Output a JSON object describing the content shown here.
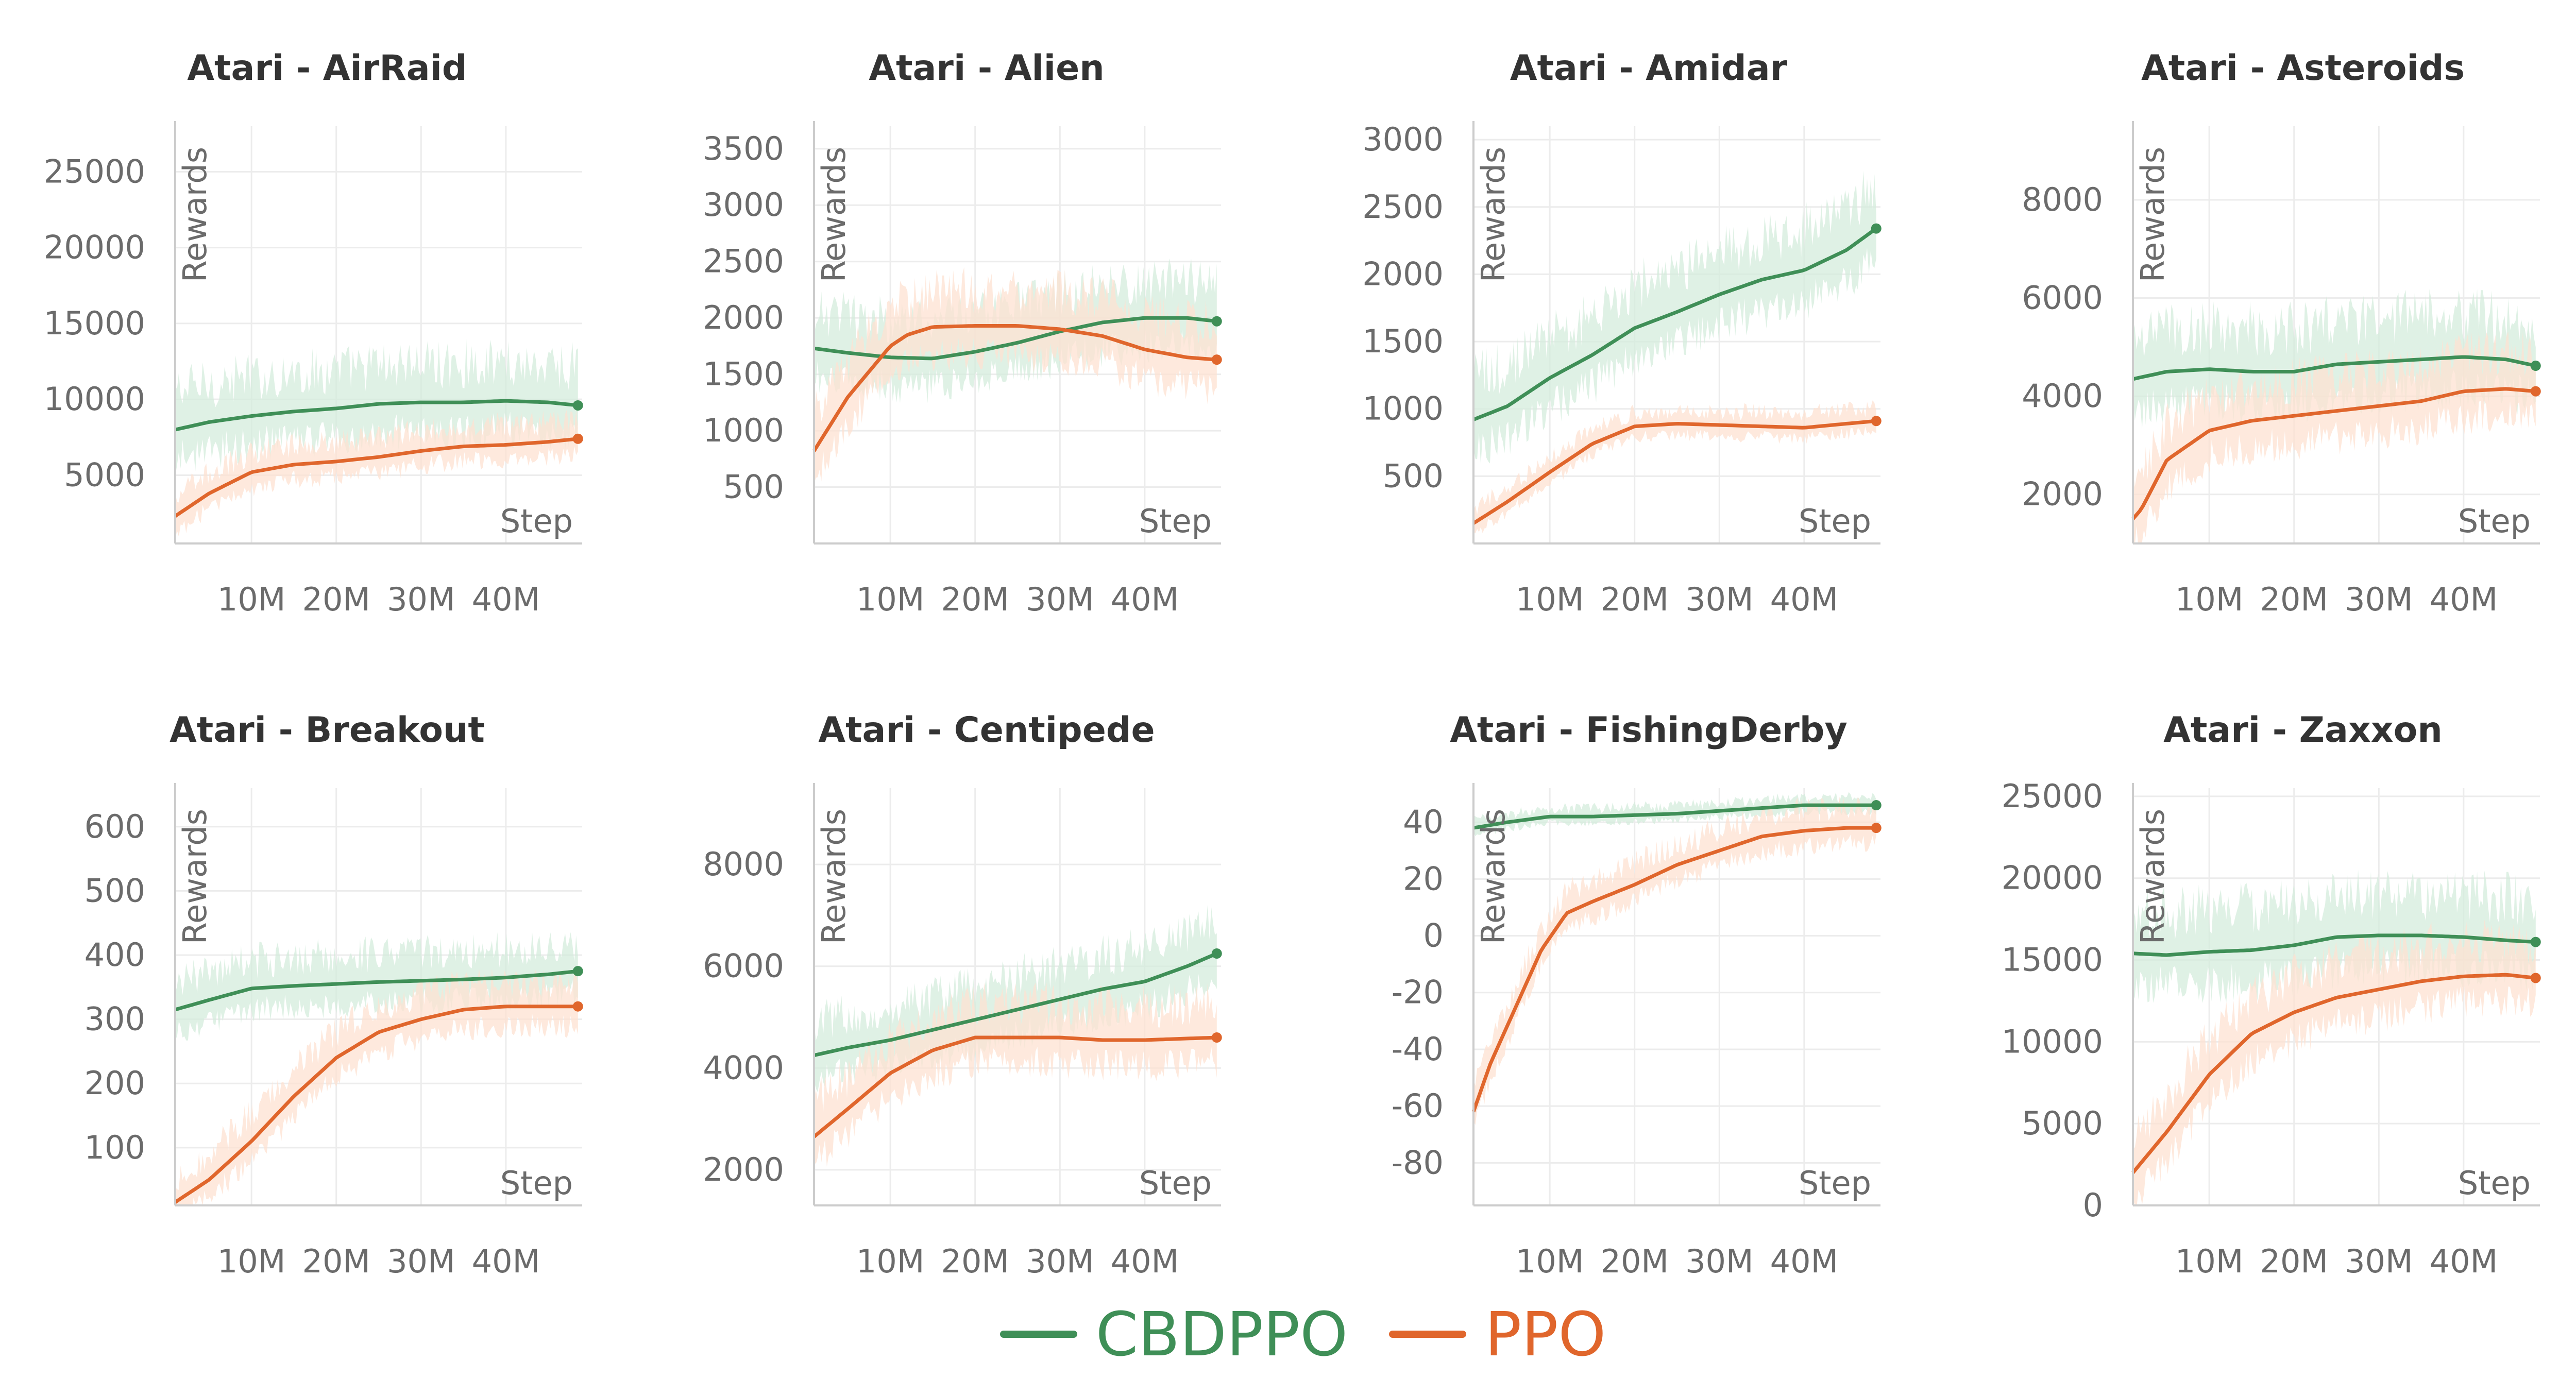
{
  "legend": {
    "series_a": "CBDPPO",
    "series_b": "PPO"
  },
  "colors": {
    "CBDPPO": "#3f8f57",
    "PPO": "#e0662c",
    "CBDPPO_band": "#d4ecdc",
    "PPO_band": "#fde2d2"
  },
  "chart_data": [
    {
      "type": "line",
      "title": "Atari - AirRaid",
      "xlabel": "Step",
      "ylabel": "Rewards",
      "xlim": [
        1,
        49
      ],
      "ylim": [
        500,
        28000
      ],
      "xticks": [
        10,
        20,
        30,
        40
      ],
      "xtick_labels": [
        "10M",
        "20M",
        "30M",
        "40M"
      ],
      "yticks": [
        5000,
        10000,
        15000,
        20000,
        25000
      ],
      "ytick_labels": [
        "5000",
        "10000",
        "15000",
        "20000",
        "25000"
      ],
      "grid": true,
      "series": [
        {
          "name": "CBDPPO",
          "x": [
            1,
            5,
            10,
            15,
            20,
            25,
            30,
            35,
            40,
            45,
            48.5
          ],
          "y": [
            8000,
            8500,
            8900,
            9200,
            9400,
            9700,
            9800,
            9800,
            9900,
            9800,
            9600
          ],
          "band_spread": 3500
        },
        {
          "name": "PPO",
          "x": [
            1,
            5,
            10,
            15,
            20,
            25,
            30,
            35,
            40,
            45,
            48.5
          ],
          "y": [
            2300,
            3800,
            5200,
            5700,
            5900,
            6200,
            6600,
            6900,
            7000,
            7200,
            7400
          ],
          "band_spread": 1800
        }
      ]
    },
    {
      "type": "line",
      "title": "Atari - Alien",
      "xlabel": "Step",
      "ylabel": "Rewards",
      "xlim": [
        1,
        49
      ],
      "ylim": [
        0,
        3700
      ],
      "xticks": [
        10,
        20,
        30,
        40
      ],
      "xtick_labels": [
        "10M",
        "20M",
        "30M",
        "40M"
      ],
      "yticks": [
        500,
        1000,
        1500,
        2000,
        2500,
        3000,
        3500
      ],
      "ytick_labels": [
        "500",
        "1000",
        "1500",
        "2000",
        "2500",
        "3000",
        "3500"
      ],
      "grid": true,
      "series": [
        {
          "name": "CBDPPO",
          "x": [
            1,
            5,
            10,
            15,
            20,
            25,
            30,
            35,
            40,
            45,
            48.5
          ],
          "y": [
            1730,
            1690,
            1650,
            1640,
            1700,
            1780,
            1880,
            1960,
            2000,
            2000,
            1970
          ],
          "band_spread": 450
        },
        {
          "name": "PPO",
          "x": [
            1,
            5,
            10,
            12,
            15,
            20,
            25,
            30,
            35,
            40,
            45,
            48.5
          ],
          "y": [
            820,
            1300,
            1750,
            1850,
            1920,
            1930,
            1930,
            1900,
            1840,
            1720,
            1650,
            1630
          ],
          "band_spread": 450
        }
      ]
    },
    {
      "type": "line",
      "title": "Atari - Amidar",
      "xlabel": "Step",
      "ylabel": "Rewards",
      "xlim": [
        1,
        49
      ],
      "ylim": [
        0,
        3100
      ],
      "xticks": [
        10,
        20,
        30,
        40
      ],
      "xtick_labels": [
        "10M",
        "20M",
        "30M",
        "40M"
      ],
      "yticks": [
        500,
        1000,
        1500,
        2000,
        2500,
        3000
      ],
      "ytick_labels": [
        "500",
        "1000",
        "1500",
        "2000",
        "2500",
        "3000"
      ],
      "grid": true,
      "series": [
        {
          "name": "CBDPPO",
          "x": [
            1,
            5,
            10,
            15,
            20,
            25,
            30,
            35,
            40,
            45,
            48.5
          ],
          "y": [
            920,
            1020,
            1230,
            1400,
            1600,
            1720,
            1850,
            1960,
            2030,
            2180,
            2340
          ],
          "band_spread": 420
        },
        {
          "name": "PPO",
          "x": [
            1,
            5,
            10,
            15,
            20,
            25,
            30,
            35,
            40,
            45,
            48.5
          ],
          "y": [
            150,
            310,
            530,
            740,
            870,
            890,
            880,
            870,
            860,
            890,
            910
          ],
          "band_spread": 140
        }
      ]
    },
    {
      "type": "line",
      "title": "Atari - Asteroids",
      "xlabel": "Step",
      "ylabel": "Rewards",
      "xlim": [
        1,
        49
      ],
      "ylim": [
        1000,
        9500
      ],
      "xticks": [
        10,
        20,
        30,
        40
      ],
      "xtick_labels": [
        "10M",
        "20M",
        "30M",
        "40M"
      ],
      "yticks": [
        2000,
        4000,
        6000,
        8000
      ],
      "ytick_labels": [
        "2000",
        "4000",
        "6000",
        "8000"
      ],
      "grid": true,
      "series": [
        {
          "name": "CBDPPO",
          "x": [
            1,
            5,
            10,
            15,
            20,
            25,
            30,
            35,
            40,
            45,
            48.5
          ],
          "y": [
            4350,
            4500,
            4550,
            4500,
            4500,
            4650,
            4700,
            4750,
            4800,
            4750,
            4620
          ],
          "band_spread": 1200
        },
        {
          "name": "PPO",
          "x": [
            1,
            2,
            5,
            10,
            15,
            20,
            25,
            30,
            35,
            40,
            45,
            48.5
          ],
          "y": [
            1500,
            1700,
            2700,
            3300,
            3500,
            3600,
            3700,
            3800,
            3900,
            4100,
            4150,
            4100
          ],
          "band_spread": 1000
        }
      ]
    },
    {
      "type": "line",
      "title": "Atari - Breakout",
      "xlabel": "Step",
      "ylabel": "Rewards",
      "xlim": [
        1,
        49
      ],
      "ylim": [
        10,
        660
      ],
      "xticks": [
        10,
        20,
        30,
        40
      ],
      "xtick_labels": [
        "10M",
        "20M",
        "30M",
        "40M"
      ],
      "yticks": [
        100,
        200,
        300,
        400,
        500,
        600
      ],
      "ytick_labels": [
        "100",
        "200",
        "300",
        "400",
        "500",
        "600"
      ],
      "grid": true,
      "series": [
        {
          "name": "CBDPPO",
          "x": [
            1,
            5,
            10,
            15,
            20,
            25,
            30,
            35,
            40,
            45,
            48.5
          ],
          "y": [
            315,
            330,
            348,
            352,
            355,
            358,
            360,
            362,
            365,
            370,
            375
          ],
          "band_spread": 60
        },
        {
          "name": "PPO",
          "x": [
            1,
            5,
            10,
            15,
            20,
            25,
            30,
            35,
            40,
            45,
            48.5
          ],
          "y": [
            15,
            50,
            110,
            180,
            240,
            280,
            300,
            315,
            320,
            320,
            320
          ],
          "band_spread": 55
        }
      ]
    },
    {
      "type": "line",
      "title": "Atari - Centipede",
      "xlabel": "Step",
      "ylabel": "Rewards",
      "xlim": [
        1,
        49
      ],
      "ylim": [
        1300,
        9500
      ],
      "xticks": [
        10,
        20,
        30,
        40
      ],
      "xtick_labels": [
        "10M",
        "20M",
        "30M",
        "40M"
      ],
      "yticks": [
        2000,
        4000,
        6000,
        8000
      ],
      "ytick_labels": [
        "2000",
        "4000",
        "6000",
        "8000"
      ],
      "grid": true,
      "series": [
        {
          "name": "CBDPPO",
          "x": [
            1,
            5,
            10,
            15,
            20,
            25,
            30,
            35,
            40,
            45,
            48.5
          ],
          "y": [
            4250,
            4400,
            4550,
            4750,
            4950,
            5150,
            5350,
            5550,
            5700,
            6000,
            6250
          ],
          "band_spread": 900
        },
        {
          "name": "PPO",
          "x": [
            1,
            5,
            10,
            15,
            20,
            25,
            30,
            35,
            40,
            45,
            48.5
          ],
          "y": [
            2650,
            3200,
            3900,
            4350,
            4600,
            4600,
            4600,
            4550,
            4550,
            4580,
            4600
          ],
          "band_spread": 900
        }
      ]
    },
    {
      "type": "line",
      "title": "Atari - FishingDerby",
      "xlabel": "Step",
      "ylabel": "Rewards",
      "xlim": [
        1,
        49
      ],
      "ylim": [
        -95,
        52
      ],
      "xticks": [
        10,
        20,
        30,
        40
      ],
      "xtick_labels": [
        "10M",
        "20M",
        "30M",
        "40M"
      ],
      "yticks": [
        -80,
        -60,
        -40,
        -20,
        0,
        20,
        40
      ],
      "ytick_labels": [
        "-80",
        "-60",
        "-40",
        "-20",
        "0",
        "20",
        "40"
      ],
      "grid": true,
      "series": [
        {
          "name": "CBDPPO",
          "x": [
            1,
            5,
            10,
            15,
            20,
            25,
            30,
            35,
            40,
            45,
            48.5
          ],
          "y": [
            38,
            40,
            42,
            42,
            42.5,
            43,
            44,
            45,
            46,
            46,
            46
          ],
          "band_spread": 4
        },
        {
          "name": "PPO",
          "x": [
            1,
            3,
            6,
            9,
            12,
            15,
            20,
            25,
            30,
            35,
            40,
            45,
            48.5
          ],
          "y": [
            -62,
            -45,
            -25,
            -5,
            8,
            12,
            18,
            25,
            30,
            35,
            37,
            38,
            38
          ],
          "band_spread": 10
        }
      ]
    },
    {
      "type": "line",
      "title": "Atari - Zaxxon",
      "xlabel": "Step",
      "ylabel": "Rewards",
      "xlim": [
        1,
        49
      ],
      "ylim": [
        0,
        25500
      ],
      "xticks": [
        10,
        20,
        30,
        40
      ],
      "xtick_labels": [
        "10M",
        "20M",
        "30M",
        "40M"
      ],
      "yticks": [
        0,
        5000,
        10000,
        15000,
        20000,
        25000
      ],
      "ytick_labels": [
        "0",
        "5000",
        "10000",
        "15000",
        "20000",
        "25000"
      ],
      "grid": true,
      "series": [
        {
          "name": "CBDPPO",
          "x": [
            1,
            5,
            10,
            15,
            20,
            25,
            30,
            35,
            40,
            45,
            48.5
          ],
          "y": [
            15400,
            15300,
            15500,
            15600,
            15900,
            16400,
            16500,
            16500,
            16400,
            16200,
            16100
          ],
          "band_spread": 3500
        },
        {
          "name": "PPO",
          "x": [
            1,
            5,
            10,
            15,
            20,
            25,
            30,
            35,
            40,
            45,
            48.5
          ],
          "y": [
            2000,
            4500,
            8000,
            10500,
            11800,
            12700,
            13200,
            13700,
            14000,
            14100,
            13900
          ],
          "band_spread": 3000
        }
      ]
    }
  ]
}
